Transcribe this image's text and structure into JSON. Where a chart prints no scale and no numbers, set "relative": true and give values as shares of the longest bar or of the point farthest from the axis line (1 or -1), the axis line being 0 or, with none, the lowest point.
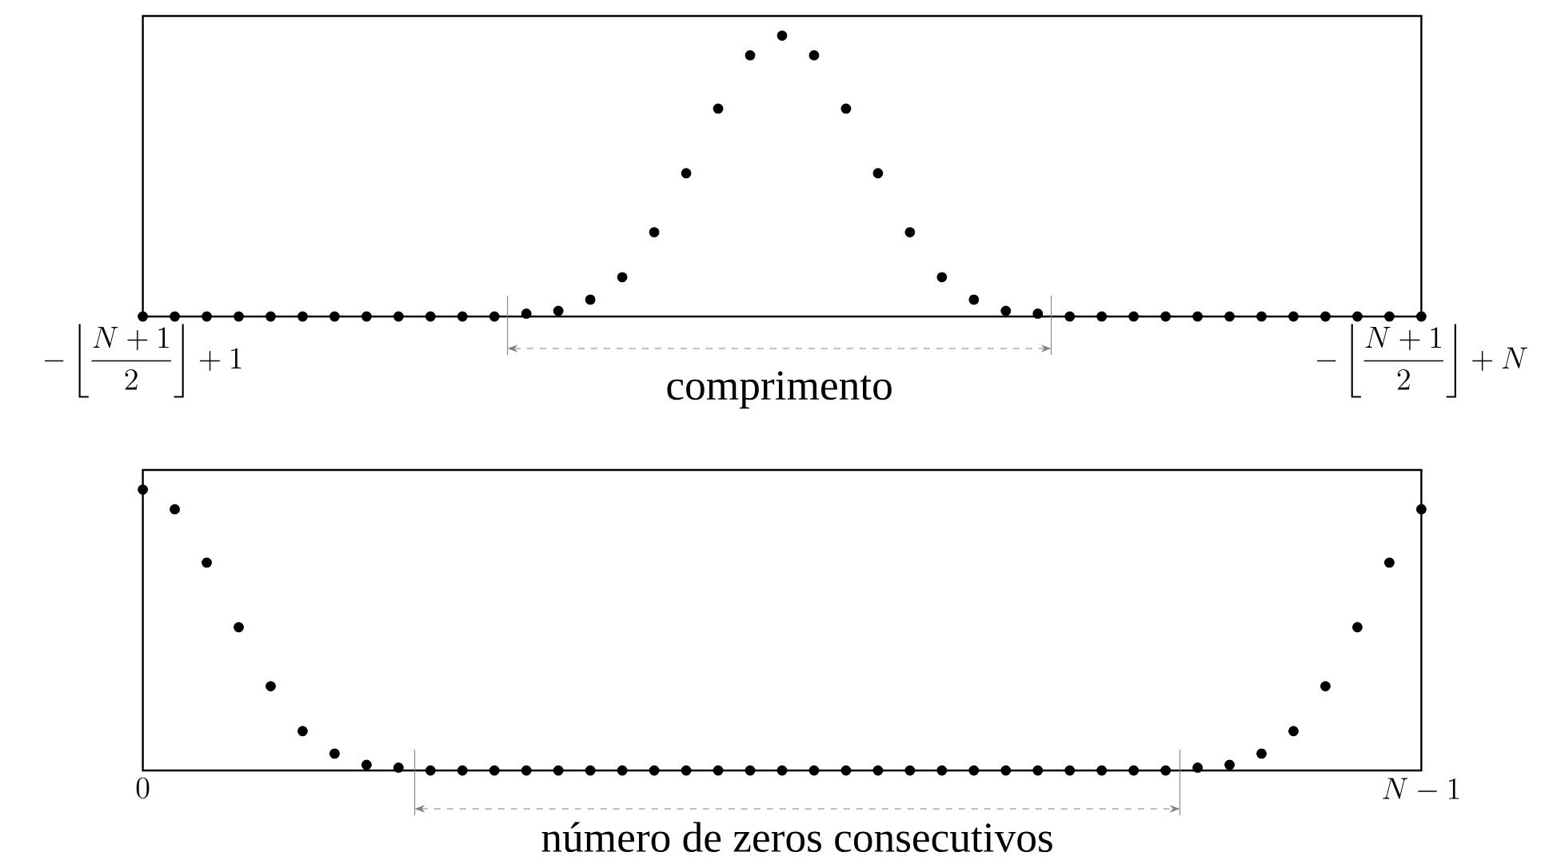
{
  "chart_data": [
    {
      "type": "scatter",
      "relative": true,
      "color": "#000000",
      "marker": "circle",
      "tick_labels": "x",
      "categories": [
        "-\\left\\lfloor\\frac{N+1}{2}\\right\\rfloor+1",
        null,
        null,
        null,
        null,
        null,
        null,
        null,
        null,
        null,
        null,
        null,
        null,
        null,
        null,
        null,
        null,
        null,
        null,
        null,
        null,
        null,
        null,
        null,
        null,
        null,
        null,
        null,
        null,
        null,
        null,
        null,
        null,
        null,
        null,
        null,
        null,
        null,
        null,
        null,
        "-\\left\\lfloor\\frac{N+1}{2}\\right\\rfloor+N"
      ],
      "values": [
        0,
        0,
        0,
        0,
        0,
        0,
        0,
        0,
        0,
        0,
        0,
        0,
        0.01,
        0.02,
        0.06,
        0.14,
        0.3,
        0.51,
        0.74,
        0.93,
        1,
        0.93,
        0.74,
        0.51,
        0.3,
        0.14,
        0.06,
        0.02,
        0.01,
        0,
        0,
        0,
        0,
        0,
        0,
        0,
        0,
        0,
        0,
        0,
        0
      ],
      "annotations": [
        "comprimento"
      ]
    },
    {
      "type": "scatter",
      "relative": true,
      "color": "#000000",
      "marker": "circle",
      "tick_labels": "x",
      "categories": [
        "0",
        null,
        null,
        null,
        null,
        null,
        null,
        null,
        null,
        null,
        null,
        null,
        null,
        null,
        null,
        null,
        null,
        null,
        null,
        null,
        null,
        null,
        null,
        null,
        null,
        null,
        null,
        null,
        null,
        null,
        null,
        null,
        null,
        null,
        null,
        null,
        null,
        null,
        null,
        null,
        "N-1"
      ],
      "values": [
        1,
        0.93,
        0.74,
        0.51,
        0.3,
        0.14,
        0.06,
        0.02,
        0.01,
        0,
        0,
        0,
        0,
        0,
        0,
        0,
        0,
        0,
        0,
        0,
        0,
        0,
        0,
        0,
        0,
        0,
        0,
        0,
        0,
        0,
        0,
        0,
        0,
        0.01,
        0.02,
        0.06,
        0.14,
        0.3,
        0.51,
        0.74,
        0.93
      ],
      "annotations": [
        "número de zeros consecutivos"
      ]
    }
  ]
}
